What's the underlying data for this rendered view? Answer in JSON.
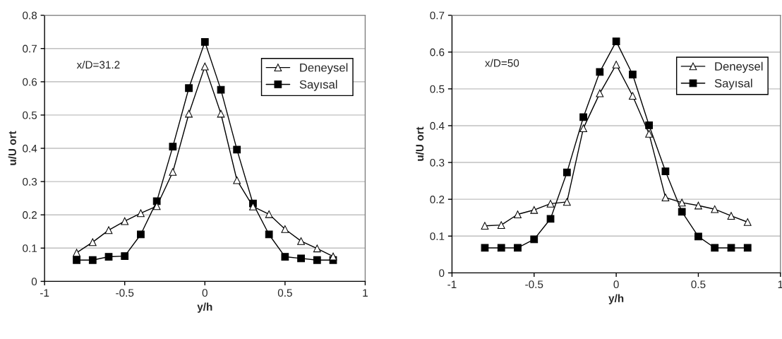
{
  "chart_data": [
    {
      "type": "line",
      "x": [
        -0.8,
        -0.7,
        -0.6,
        -0.5,
        -0.4,
        -0.3,
        -0.2,
        -0.1,
        0,
        0.1,
        0.2,
        0.3,
        0.4,
        0.5,
        0.6,
        0.7,
        0.8
      ],
      "xlabel": "y/h",
      "ylabel": "u/U ort",
      "xlim": [
        -1,
        1
      ],
      "xticks": [
        -1,
        -0.5,
        0,
        0.5,
        1
      ],
      "ylim": [
        0,
        0.8
      ],
      "yticks": [
        0,
        0.1,
        0.2,
        0.3,
        0.4,
        0.5,
        0.6,
        0.7,
        0.8
      ],
      "grid": "y",
      "legend": "top right",
      "annotations": [
        "x/D=31.2"
      ],
      "series": [
        {
          "name": "Deneysel",
          "color": "#000000",
          "marker": "triangle",
          "values": [
            0.086,
            0.118,
            0.154,
            0.181,
            0.205,
            0.226,
            0.329,
            0.504,
            0.646,
            0.504,
            0.304,
            0.225,
            0.202,
            0.157,
            0.121,
            0.099,
            0.075
          ]
        },
        {
          "name": "Sayısal",
          "color": "#000000",
          "marker": "square",
          "values": [
            0.064,
            0.064,
            0.074,
            0.076,
            0.141,
            0.241,
            0.405,
            0.581,
            0.72,
            0.576,
            0.396,
            0.234,
            0.141,
            0.074,
            0.069,
            0.064,
            0.064
          ]
        }
      ]
    },
    {
      "type": "line",
      "x": [
        -0.8,
        -0.7,
        -0.6,
        -0.5,
        -0.4,
        -0.3,
        -0.2,
        -0.1,
        0,
        0.1,
        0.2,
        0.3,
        0.4,
        0.5,
        0.6,
        0.7,
        0.8
      ],
      "xlabel": "y/h",
      "ylabel": "u/U ort",
      "xlim": [
        -1,
        1
      ],
      "xticks": [
        -1,
        -0.5,
        0,
        0.5,
        1
      ],
      "ylim": [
        0,
        0.7
      ],
      "yticks": [
        0,
        0.1,
        0.2,
        0.3,
        0.4,
        0.5,
        0.6,
        0.7
      ],
      "grid": "y",
      "legend": "top right",
      "annotations": [
        "x/D=50"
      ],
      "series": [
        {
          "name": "Deneysel",
          "color": "#000000",
          "marker": "triangle",
          "values": [
            0.128,
            0.13,
            0.159,
            0.171,
            0.188,
            0.193,
            0.393,
            0.488,
            0.566,
            0.481,
            0.378,
            0.205,
            0.191,
            0.183,
            0.173,
            0.155,
            0.138
          ]
        },
        {
          "name": "Sayısal",
          "color": "#000000",
          "marker": "square",
          "values": [
            0.068,
            0.068,
            0.068,
            0.091,
            0.147,
            0.273,
            0.423,
            0.546,
            0.629,
            0.539,
            0.401,
            0.276,
            0.166,
            0.099,
            0.068,
            0.068,
            0.068
          ]
        }
      ]
    }
  ]
}
